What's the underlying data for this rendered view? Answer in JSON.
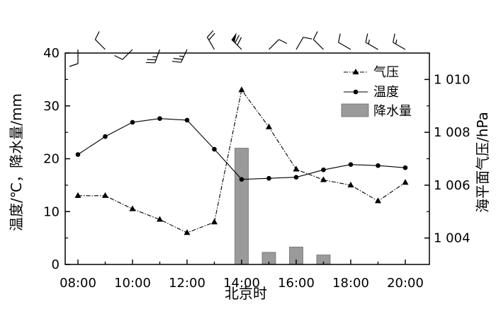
{
  "chart_data": {
    "type": "line",
    "xlabel": "北京时",
    "ylabel_left": "温度/℃，降水量/mm",
    "ylabel_right": "海平面气压/hPa",
    "x_categories": [
      "08:00",
      "09:00",
      "10:00",
      "11:00",
      "12:00",
      "13:00",
      "14:00",
      "15:00",
      "16:00",
      "17:00",
      "18:00",
      "19:00",
      "20:00"
    ],
    "x_tick_labels": [
      "08:00",
      "10:00",
      "12:00",
      "14:00",
      "16:00",
      "18:00",
      "20:00"
    ],
    "ylim_left": [
      0,
      40
    ],
    "yticks_left": [
      "0",
      "10",
      "20",
      "30",
      "40"
    ],
    "ylim_right": [
      1003,
      1011
    ],
    "yticks_right": [
      "1 004",
      "1 006",
      "1 008",
      "1 010"
    ],
    "legend_position": "top-right",
    "grid": false,
    "series": [
      {
        "name": "气压",
        "axis": "right",
        "style": "dash-dot line with triangle markers",
        "x": [
          "08:00",
          "09:00",
          "10:00",
          "11:00",
          "12:00",
          "13:00",
          "14:00",
          "15:00",
          "16:00",
          "17:00",
          "18:00",
          "19:00",
          "20:00"
        ],
        "values": [
          1005.6,
          1005.6,
          1005.1,
          1004.7,
          1004.2,
          1004.6,
          1009.6,
          1008.2,
          1006.6,
          1006.2,
          1006.0,
          1005.4,
          1006.1
        ]
      },
      {
        "name": "温度",
        "axis": "left",
        "style": "solid line with circle markers",
        "x": [
          "08:00",
          "09:00",
          "10:00",
          "11:00",
          "12:00",
          "13:00",
          "14:00",
          "15:00",
          "16:00",
          "17:00",
          "18:00",
          "19:00",
          "20:00"
        ],
        "values": [
          20.8,
          24.2,
          26.9,
          27.6,
          27.3,
          21.8,
          16.1,
          16.3,
          16.5,
          17.9,
          18.9,
          18.7,
          18.3
        ]
      },
      {
        "name": "降水量",
        "axis": "left",
        "style": "gray bars",
        "x": [
          "14:00",
          "15:00",
          "16:00",
          "17:00"
        ],
        "values": [
          22.0,
          2.3,
          3.3,
          1.8
        ]
      }
    ],
    "wind_barbs": {
      "x": [
        "08:00",
        "09:00",
        "10:00",
        "11:00",
        "12:00",
        "13:00",
        "14:00",
        "15:00",
        "16:00",
        "17:00",
        "18:00",
        "19:00",
        "20:00"
      ],
      "direction_deg": [
        180,
        315,
        225,
        200,
        205,
        330,
        315,
        45,
        30,
        315,
        300,
        300,
        300
      ],
      "barbs": [
        {
          "pennants": 0,
          "full": 1,
          "half": 0
        },
        {
          "pennants": 0,
          "full": 1,
          "half": 0
        },
        {
          "pennants": 0,
          "full": 1,
          "half": 0
        },
        {
          "pennants": 0,
          "full": 2,
          "half": 1
        },
        {
          "pennants": 0,
          "full": 2,
          "half": 1
        },
        {
          "pennants": 0,
          "full": 2,
          "half": 0
        },
        {
          "pennants": 1,
          "full": 2,
          "half": 0
        },
        {
          "pennants": 0,
          "full": 1,
          "half": 0
        },
        {
          "pennants": 0,
          "full": 1,
          "half": 0
        },
        {
          "pennants": 0,
          "full": 1,
          "half": 0
        },
        {
          "pennants": 0,
          "full": 1,
          "half": 0
        },
        {
          "pennants": 0,
          "full": 1,
          "half": 1
        },
        {
          "pennants": 0,
          "full": 1,
          "half": 1
        }
      ]
    },
    "colors": {
      "axis": "#000000",
      "bars": "#9a9a9a",
      "bar_edge": "#6e6e6e"
    }
  }
}
